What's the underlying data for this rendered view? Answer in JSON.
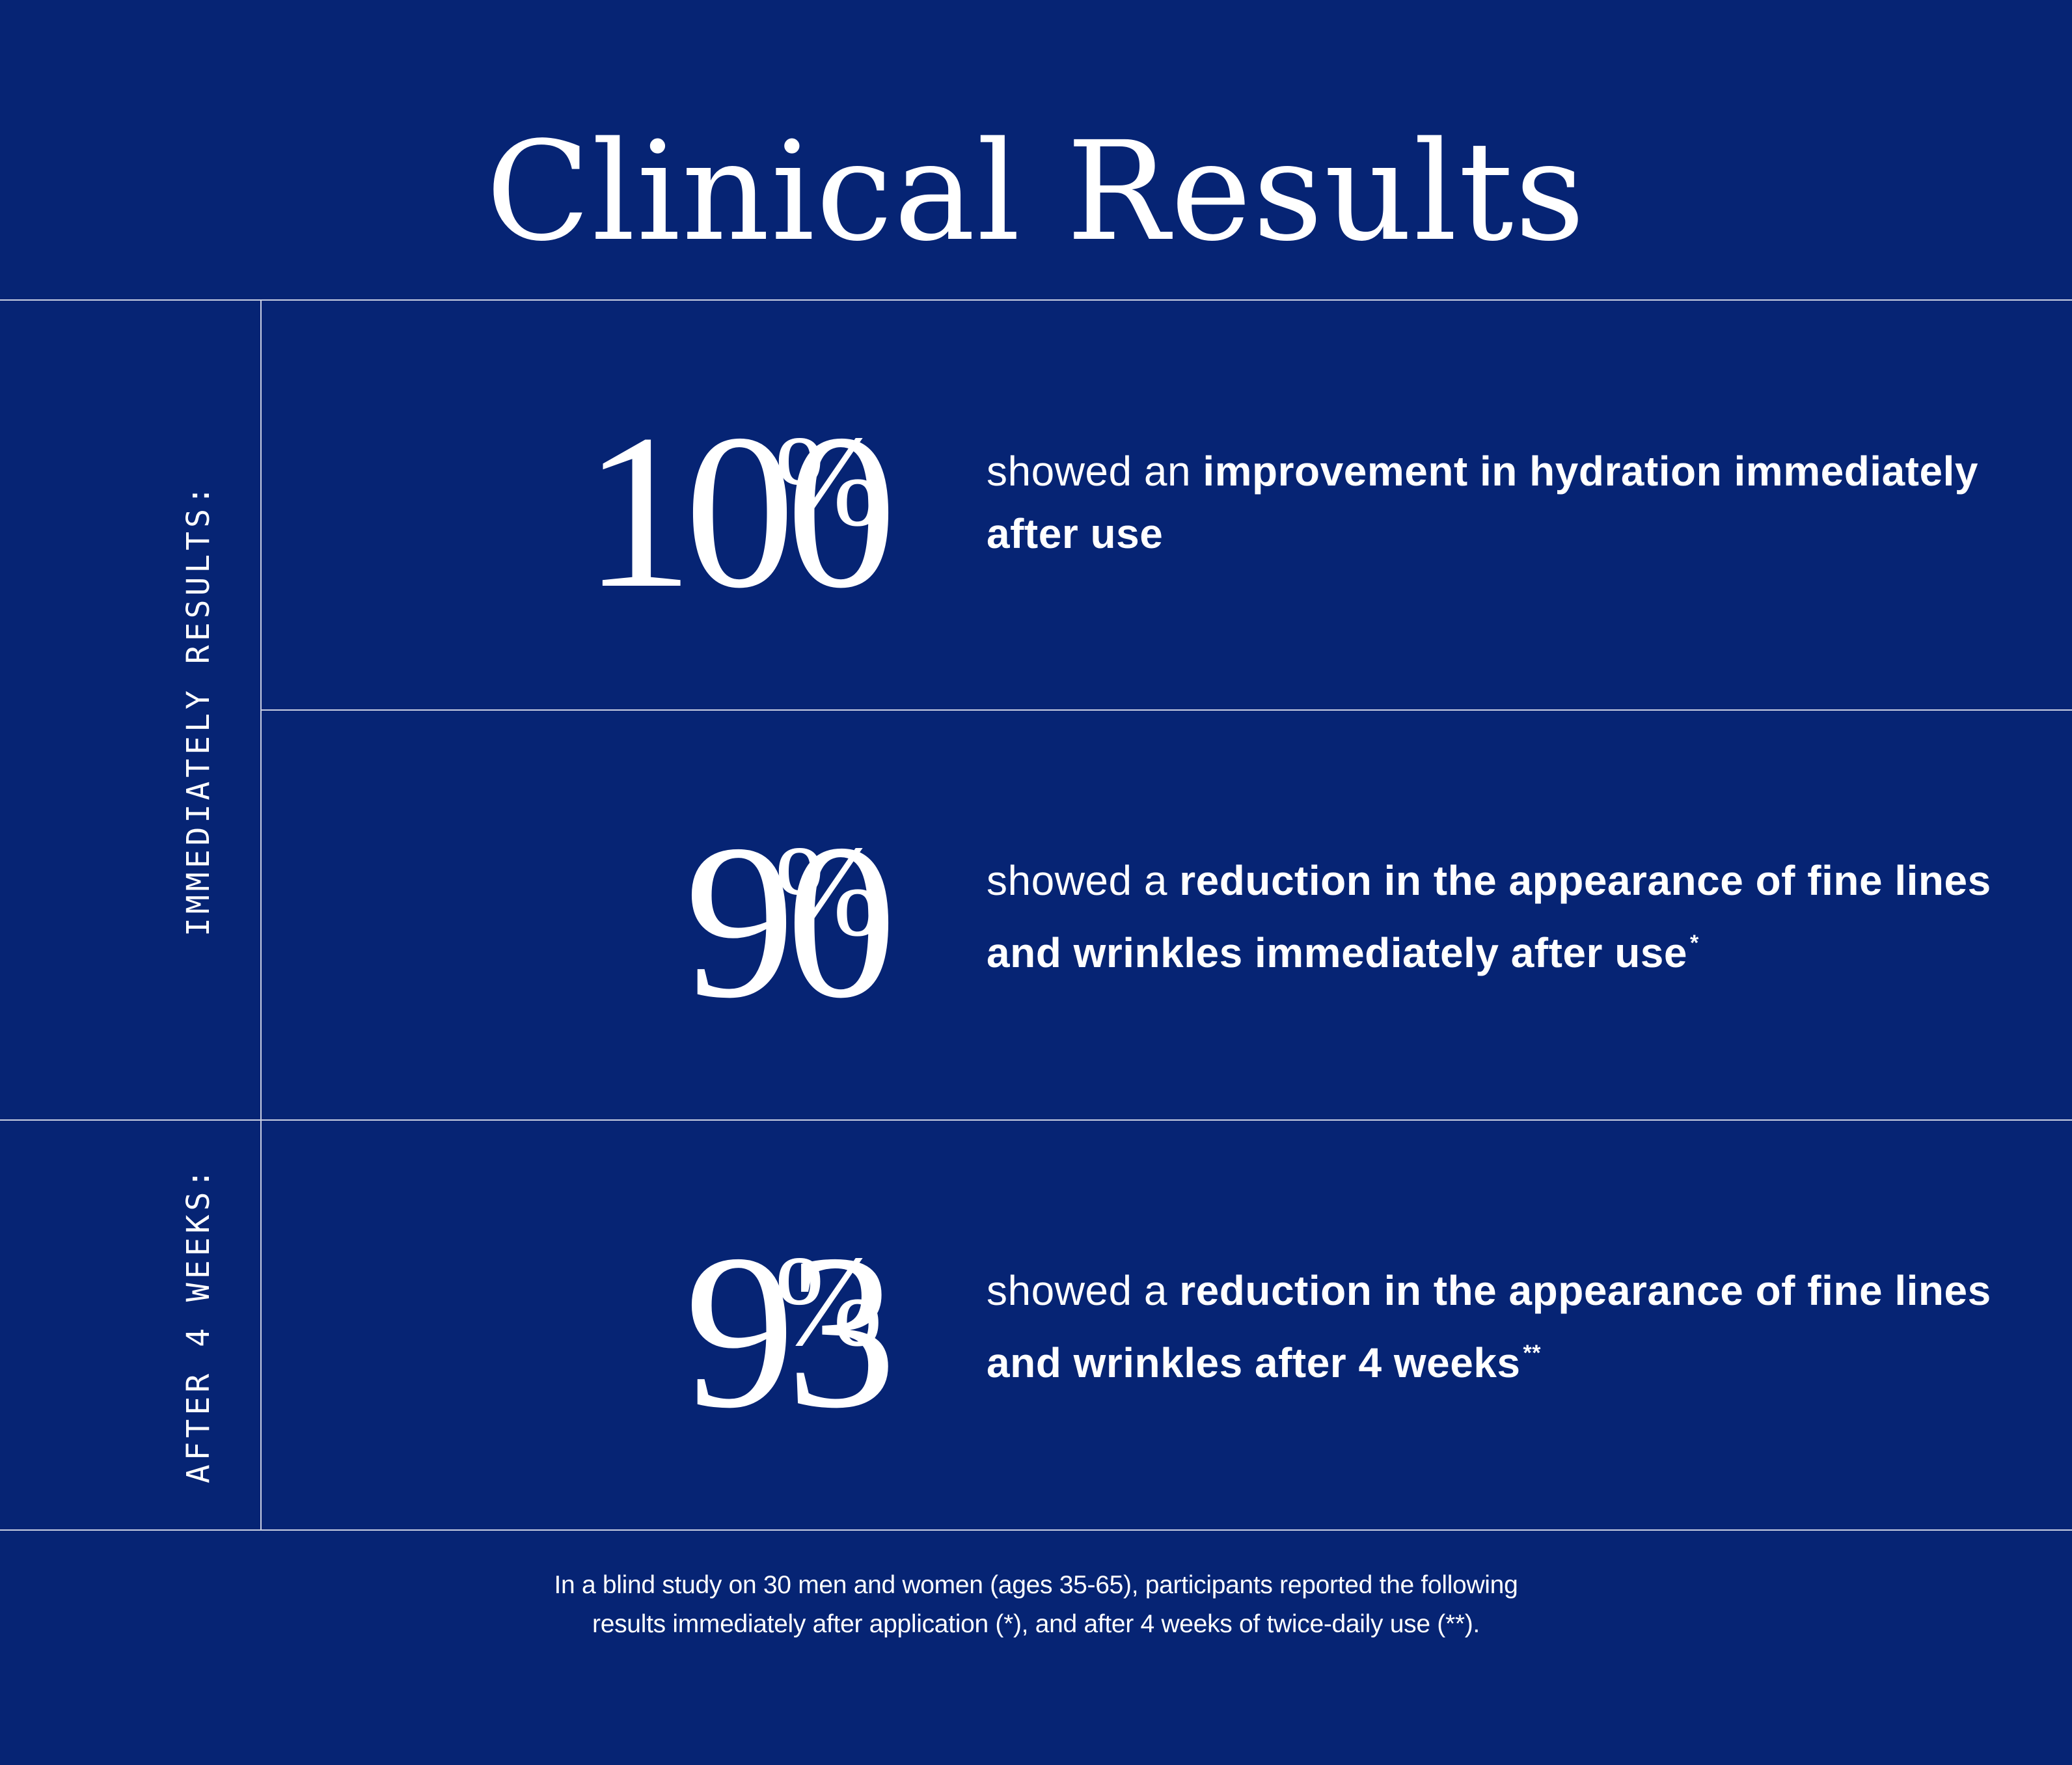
{
  "title": "Clinical Results",
  "side_labels": {
    "immediate": "IMMEDIATELY RESULTS:",
    "after_weeks": "AFTER 4 WEEKS:"
  },
  "stats": [
    {
      "value": "100",
      "unit": "%",
      "lead": "showed an ",
      "emphasis": "improvement in hydration immediately after use",
      "mark": ""
    },
    {
      "value": "90",
      "unit": "%",
      "lead": "showed a ",
      "emphasis": "reduction in the appearance of fine lines and wrinkles immediately after use",
      "mark": "*"
    },
    {
      "value": "93",
      "unit": "%",
      "lead": "showed a ",
      "emphasis": "reduction in the appearance of fine lines and wrinkles after 4 weeks",
      "mark": "**"
    }
  ],
  "footnote": {
    "line1": "In a blind study on 30 men and women (ages 35-65), participants reported the following",
    "line2": "results immediately after application (*), and after 4 weeks of twice-daily use (**)."
  },
  "colors": {
    "background": "#062474",
    "text": "#ffffff",
    "rule": "#c9cfe3"
  }
}
